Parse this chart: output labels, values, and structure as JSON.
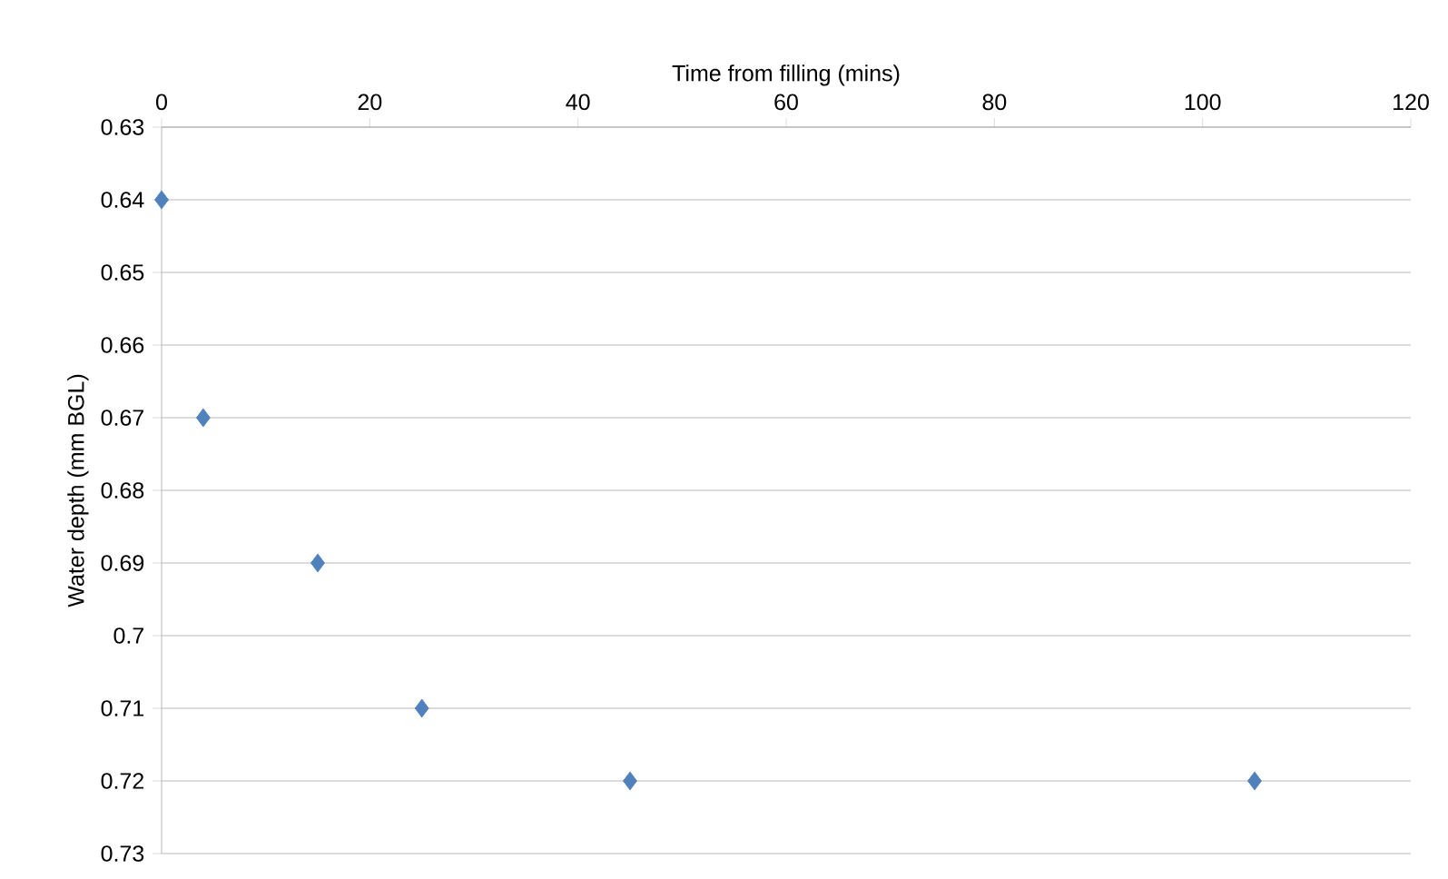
{
  "chart_data": {
    "type": "scatter",
    "xlabel": "Time from filling (mins)",
    "ylabel": "Water depth  (mm BGL)",
    "x": [
      0,
      4,
      15,
      25,
      45,
      105
    ],
    "values": [
      0.64,
      0.67,
      0.69,
      0.71,
      0.72,
      0.72
    ],
    "color": "#4f81bd",
    "marker": "diamond",
    "xlim": [
      0,
      120
    ],
    "xticks": [
      0,
      20,
      40,
      60,
      80,
      100,
      120
    ],
    "ylim": [
      0.73,
      0.63
    ],
    "yticks": [
      {
        "value": 0.63,
        "label": "0.63"
      },
      {
        "value": 0.64,
        "label": "0.64"
      },
      {
        "value": 0.65,
        "label": "0.65"
      },
      {
        "value": 0.66,
        "label": "0.66"
      },
      {
        "value": 0.67,
        "label": "0.67"
      },
      {
        "value": 0.68,
        "label": "0.68"
      },
      {
        "value": 0.69,
        "label": "0.69"
      },
      {
        "value": 0.7,
        "label": "0.7"
      },
      {
        "value": 0.71,
        "label": "0.71"
      },
      {
        "value": 0.72,
        "label": "0.72"
      },
      {
        "value": 0.73,
        "label": "0.73"
      }
    ],
    "grid": "y"
  }
}
